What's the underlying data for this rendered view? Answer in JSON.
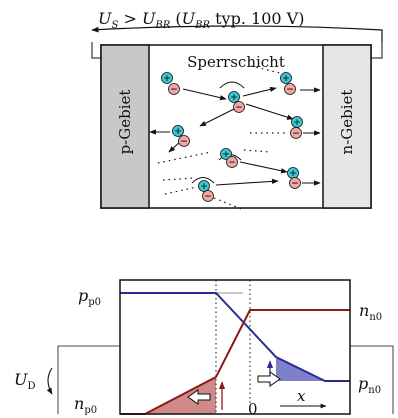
{
  "top_diagram": {
    "voltage_condition": {
      "u_s": "U",
      "u_s_sub": "S",
      "greater": ">",
      "u_br": "U",
      "u_br_sub": "BR",
      "paren_open": "(",
      "u_br2": "U",
      "u_br2_sub": "BR",
      "typ": "typ. 100 V)"
    },
    "p_region": "p-Gebiet",
    "n_region": "n-Gebiet",
    "depletion_label": "Sperrschicht",
    "colors": {
      "p_region_fill": "#c8c8c8",
      "n_region_fill": "#e6e6e6",
      "hole_fill": "#36c9d6",
      "electron_fill": "#f3a6a6"
    },
    "particles": {
      "hole_sign": "+",
      "electron_sign": "−"
    }
  },
  "bottom_plot": {
    "labels": {
      "p_p0": "p",
      "p_p0_sub": "p0",
      "n_n0": "n",
      "n_n0_sub": "n0",
      "p_n0": "p",
      "p_n0_sub": "n0",
      "n_p0": "n",
      "n_p0_sub": "p0",
      "u_d": "U",
      "u_d_sub": "D",
      "x": "x",
      "zero": "0"
    },
    "colors": {
      "holes_curve": "#2b2c8f",
      "electrons_curve": "#8e1a1a",
      "holes_fill": "#7f80cc",
      "electrons_fill": "#d08a8a"
    }
  }
}
